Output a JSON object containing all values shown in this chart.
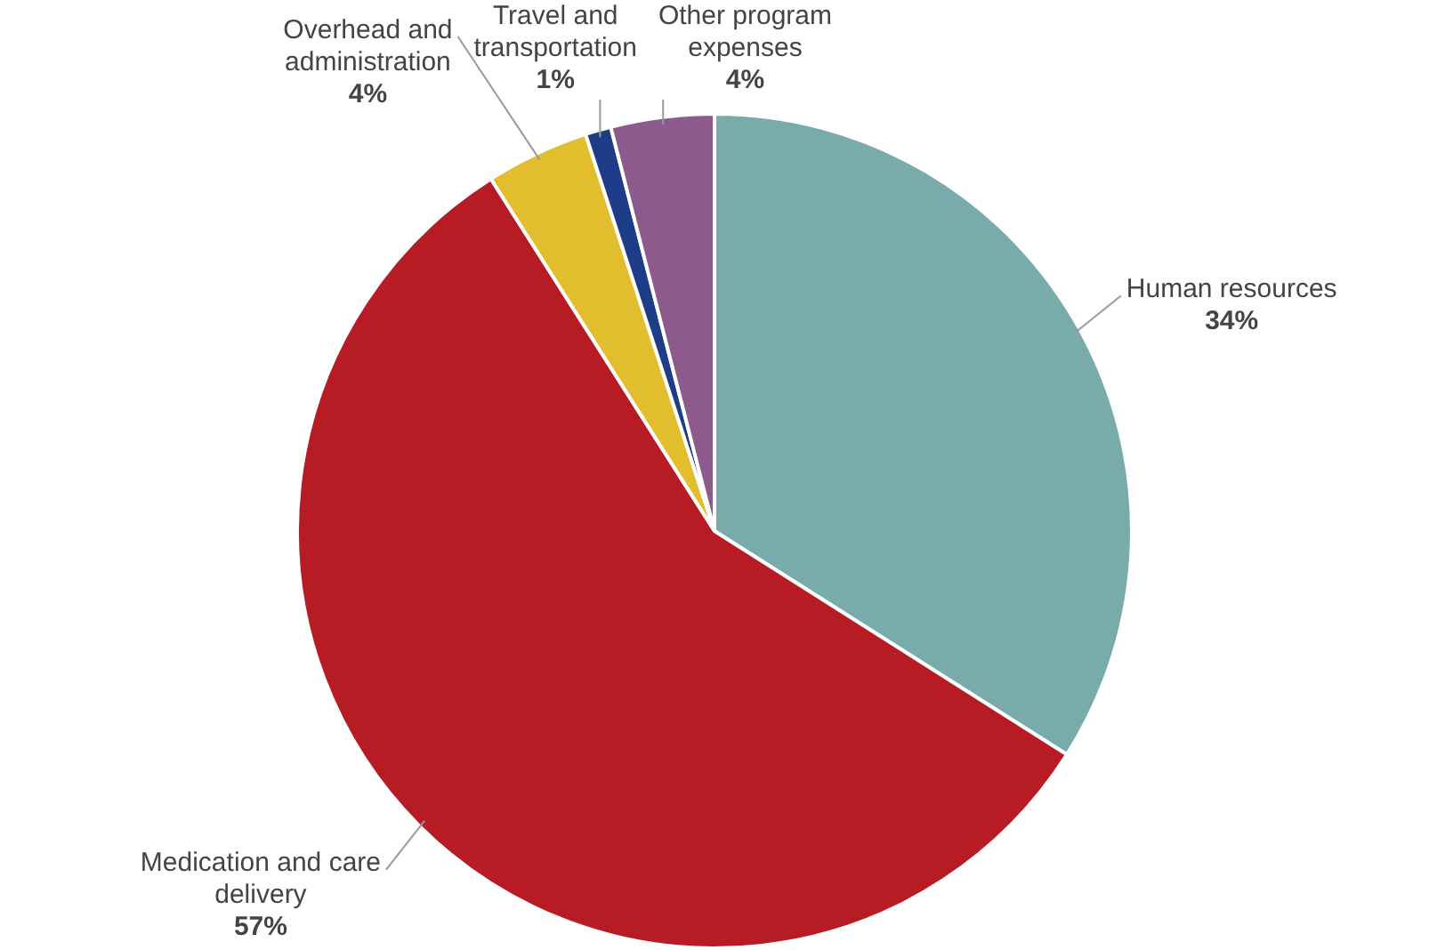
{
  "chart_data": {
    "type": "pie",
    "categories": [
      "Human resources",
      "Medication and care delivery",
      "Overhead and administration",
      "Travel and transportation",
      "Other program expenses"
    ],
    "values": [
      34,
      57,
      4,
      1,
      4
    ],
    "colors": [
      "#7aabab",
      "#b71c24",
      "#e2bd2e",
      "#1f3c88",
      "#8c5a8c"
    ],
    "value_labels": [
      "34%",
      "57%",
      "4%",
      "1%",
      "4%"
    ]
  }
}
